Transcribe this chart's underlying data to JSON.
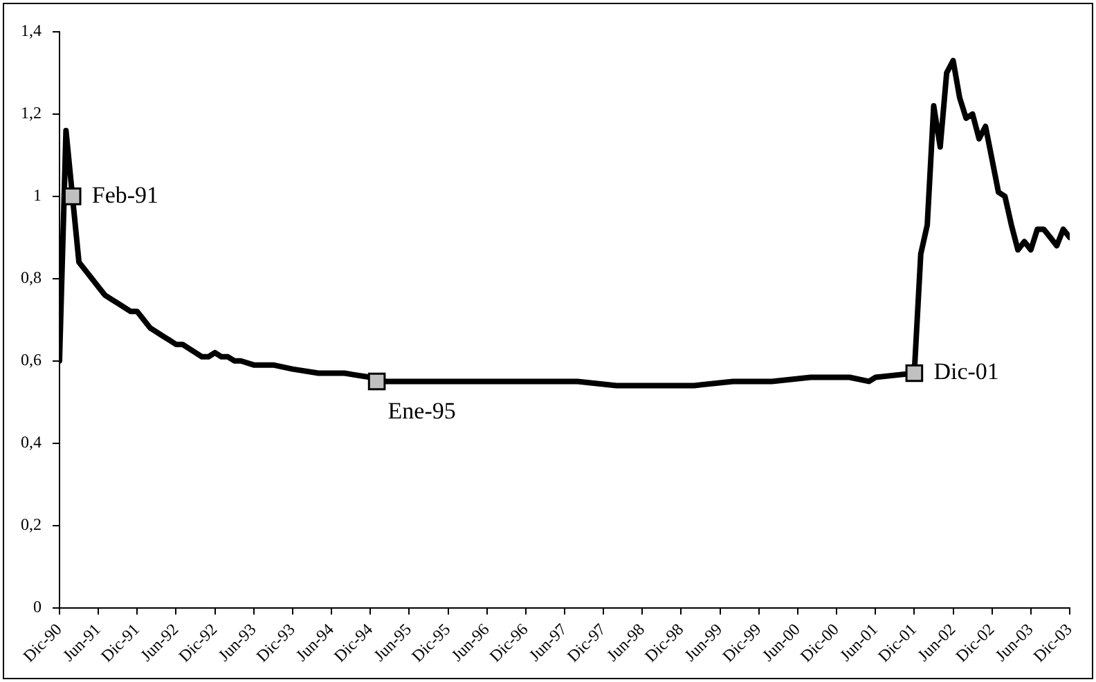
{
  "chart_data": {
    "type": "line",
    "xlim": [
      "1990-12",
      "2003-12"
    ],
    "xticks": [
      {
        "value": "1990-12",
        "label": "Dic-90"
      },
      {
        "value": "1991-06",
        "label": "Jun-91"
      },
      {
        "value": "1991-12",
        "label": "Dic-91"
      },
      {
        "value": "1992-06",
        "label": "Jun-92"
      },
      {
        "value": "1992-12",
        "label": "Dic-92"
      },
      {
        "value": "1993-06",
        "label": "Jun-93"
      },
      {
        "value": "1993-12",
        "label": "Dic-93"
      },
      {
        "value": "1994-06",
        "label": "Jun-94"
      },
      {
        "value": "1994-12",
        "label": "Dic-94"
      },
      {
        "value": "1995-06",
        "label": "Jun-95"
      },
      {
        "value": "1995-12",
        "label": "Dic-95"
      },
      {
        "value": "1996-06",
        "label": "Jun-96"
      },
      {
        "value": "1996-12",
        "label": "Dic-96"
      },
      {
        "value": "1997-06",
        "label": "Jun-97"
      },
      {
        "value": "1997-12",
        "label": "Dic-97"
      },
      {
        "value": "1998-06",
        "label": "Jun-98"
      },
      {
        "value": "1998-12",
        "label": "Dic-98"
      },
      {
        "value": "1999-06",
        "label": "Jun-99"
      },
      {
        "value": "1999-12",
        "label": "Dic-99"
      },
      {
        "value": "2000-06",
        "label": "Jun-00"
      },
      {
        "value": "2000-12",
        "label": "Dic-00"
      },
      {
        "value": "2001-06",
        "label": "Jun-01"
      },
      {
        "value": "2001-12",
        "label": "Dic-01"
      },
      {
        "value": "2002-06",
        "label": "Jun-02"
      },
      {
        "value": "2002-12",
        "label": "Dic-02"
      },
      {
        "value": "2003-06",
        "label": "Jun-03"
      },
      {
        "value": "2003-12",
        "label": "Dic-03"
      }
    ],
    "ylim": [
      0,
      1.4
    ],
    "yticks": [
      0,
      {
        "value": 0.2,
        "label": "0,2"
      },
      {
        "value": 0.4,
        "label": "0,4"
      },
      {
        "value": 0.6,
        "label": "0,6"
      },
      {
        "value": 0.8,
        "label": "0,8"
      },
      1,
      {
        "value": 1.2,
        "label": "1,2"
      },
      {
        "value": 1.4,
        "label": "1,4"
      }
    ],
    "grid": false,
    "legend": false,
    "line_style": "solid",
    "series": [
      {
        "type": "line",
        "color": "#000000",
        "marker": "none",
        "x": [
          "1990-12",
          "1991-01",
          "1991-02",
          "1991-03",
          "1991-04",
          "1991-05",
          "1991-06",
          "1991-07",
          "1991-08",
          "1991-09",
          "1991-10",
          "1991-11",
          "1991-12",
          "1992-01",
          "1992-02",
          "1992-03",
          "1992-04",
          "1992-05",
          "1992-06",
          "1992-07",
          "1992-08",
          "1992-09",
          "1992-10",
          "1992-11",
          "1992-12",
          "1993-01",
          "1993-02",
          "1993-03",
          "1993-04",
          "1993-06",
          "1993-09",
          "1993-12",
          "1994-04",
          "1994-08",
          "1994-12",
          "1995-02",
          "1995-08",
          "1996-02",
          "1996-08",
          "1997-02",
          "1997-08",
          "1998-02",
          "1998-08",
          "1999-02",
          "1999-08",
          "2000-02",
          "2000-08",
          "2001-02",
          "2001-05",
          "2001-06",
          "2001-12",
          "2002-01",
          "2002-02",
          "2002-03",
          "2002-04",
          "2002-05",
          "2002-06",
          "2002-07",
          "2002-08",
          "2002-09",
          "2002-10",
          "2002-11",
          "2002-12",
          "2003-01",
          "2003-02",
          "2003-03",
          "2003-04",
          "2003-05",
          "2003-06",
          "2003-07",
          "2003-08",
          "2003-09",
          "2003-10",
          "2003-11",
          "2003-12"
        ],
        "values": [
          0.6,
          1.16,
          1.0,
          0.84,
          0.82,
          0.8,
          0.78,
          0.76,
          0.75,
          0.74,
          0.73,
          0.72,
          0.72,
          0.7,
          0.68,
          0.67,
          0.66,
          0.65,
          0.64,
          0.64,
          0.63,
          0.62,
          0.61,
          0.61,
          0.62,
          0.61,
          0.61,
          0.6,
          0.6,
          0.59,
          0.59,
          0.58,
          0.57,
          0.57,
          0.56,
          0.55,
          0.55,
          0.55,
          0.55,
          0.55,
          0.55,
          0.54,
          0.54,
          0.54,
          0.55,
          0.55,
          0.56,
          0.56,
          0.55,
          0.56,
          0.57,
          0.86,
          0.93,
          1.22,
          1.12,
          1.3,
          1.33,
          1.24,
          1.19,
          1.2,
          1.14,
          1.17,
          1.09,
          1.01,
          1.0,
          0.93,
          0.87,
          0.89,
          0.87,
          0.92,
          0.92,
          0.9,
          0.88,
          0.92,
          0.9
        ]
      },
      {
        "type": "scatter",
        "color": "#c0c0c0",
        "marker": "square",
        "x": [
          "1991-02",
          "1995-01",
          "2001-12"
        ],
        "values": [
          1.0,
          0.55,
          0.57
        ]
      }
    ],
    "annotations": [
      {
        "text": "Feb-91",
        "x": "1991-02",
        "y": 1.0
      },
      {
        "text": "Ene-95",
        "x": "1995-01",
        "y": 0.55
      },
      {
        "text": "Dic-01",
        "x": "2001-12",
        "y": 0.57
      }
    ]
  }
}
